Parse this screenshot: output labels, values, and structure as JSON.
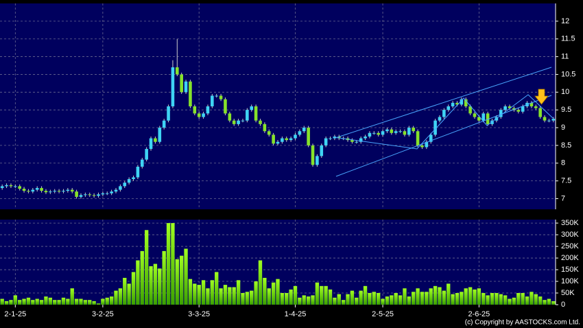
{
  "chart_data": {
    "type": "candlestick",
    "open": [
      7.3,
      7.35,
      7.38,
      7.35,
      7.35,
      7.28,
      7.22,
      7.2,
      7.25,
      7.3,
      7.22,
      7.18,
      7.2,
      7.22,
      7.2,
      7.22,
      7.25,
      7.2,
      7.05,
      7.1,
      7.12,
      7.1,
      7.08,
      7.12,
      7.15,
      7.15,
      7.2,
      7.25,
      7.35,
      7.45,
      7.55,
      7.6,
      7.9,
      8.1,
      8.4,
      8.7,
      8.6,
      9.0,
      9.2,
      9.6,
      10.7,
      10.5,
      10.0,
      10.3,
      9.6,
      9.4,
      9.3,
      9.4,
      9.6,
      9.9,
      9.9,
      9.8,
      9.4,
      9.2,
      9.1,
      9.2,
      9.2,
      9.5,
      9.6,
      9.2,
      9.1,
      8.9,
      8.8,
      8.55,
      8.6,
      8.7,
      8.65,
      8.7,
      8.8,
      8.9,
      9.0,
      8.5,
      7.95,
      8.2,
      8.5,
      8.7,
      8.7,
      8.75,
      8.7,
      8.7,
      8.65,
      8.6,
      8.6,
      8.7,
      8.75,
      8.85,
      8.85,
      8.8,
      8.9,
      8.95,
      8.85,
      8.9,
      8.9,
      8.8,
      9.0,
      8.9,
      8.5,
      8.45,
      8.6,
      8.8,
      9.2,
      9.3,
      9.5,
      9.6,
      9.7,
      9.65,
      9.8,
      9.6,
      9.4,
      9.3,
      9.2,
      9.4,
      9.1,
      9.2,
      9.3,
      9.5,
      9.6,
      9.55,
      9.5,
      9.45,
      9.6,
      9.7,
      9.6,
      9.55,
      9.3,
      9.2,
      9.2
    ],
    "high": [
      7.4,
      7.43,
      7.43,
      7.4,
      7.4,
      7.33,
      7.27,
      7.3,
      7.35,
      7.35,
      7.27,
      7.25,
      7.27,
      7.27,
      7.27,
      7.3,
      7.3,
      7.25,
      7.15,
      7.17,
      7.17,
      7.15,
      7.17,
      7.2,
      7.2,
      7.25,
      7.3,
      7.4,
      7.5,
      7.6,
      7.65,
      7.95,
      8.15,
      8.45,
      8.75,
      8.75,
      9.05,
      9.25,
      9.65,
      10.9,
      11.5,
      10.55,
      10.35,
      10.35,
      9.65,
      9.45,
      9.45,
      9.65,
      9.95,
      9.95,
      9.95,
      9.85,
      9.45,
      9.25,
      9.25,
      9.25,
      9.55,
      9.65,
      9.65,
      9.25,
      9.15,
      8.95,
      8.85,
      8.65,
      8.75,
      8.75,
      8.75,
      8.85,
      8.95,
      9.05,
      9.05,
      8.55,
      8.25,
      8.55,
      8.75,
      8.75,
      8.8,
      8.8,
      8.75,
      8.75,
      8.7,
      8.65,
      8.75,
      8.8,
      8.9,
      8.9,
      8.9,
      8.95,
      9.0,
      9.0,
      8.95,
      8.95,
      8.95,
      9.05,
      9.05,
      8.95,
      8.55,
      8.65,
      8.85,
      9.25,
      9.35,
      9.55,
      9.65,
      9.75,
      9.75,
      9.85,
      9.85,
      9.65,
      9.45,
      9.35,
      9.45,
      9.45,
      9.25,
      9.35,
      9.55,
      9.65,
      9.65,
      9.6,
      9.55,
      9.65,
      9.75,
      9.75,
      9.65,
      9.6,
      9.35,
      9.25,
      9.3
    ],
    "low": [
      7.25,
      7.3,
      7.3,
      7.3,
      7.23,
      7.17,
      7.15,
      7.15,
      7.2,
      7.17,
      7.13,
      7.13,
      7.15,
      7.15,
      7.15,
      7.17,
      7.15,
      7.0,
      7.0,
      7.05,
      7.05,
      7.03,
      7.03,
      7.07,
      7.1,
      7.1,
      7.15,
      7.2,
      7.3,
      7.4,
      7.5,
      7.55,
      7.85,
      8.05,
      8.35,
      8.55,
      8.55,
      8.95,
      9.15,
      9.55,
      10.45,
      9.95,
      9.95,
      9.55,
      9.35,
      9.25,
      9.25,
      9.35,
      9.55,
      9.85,
      9.75,
      9.35,
      9.15,
      9.05,
      9.05,
      9.15,
      9.15,
      9.45,
      9.15,
      9.05,
      8.85,
      8.75,
      8.5,
      8.5,
      8.55,
      8.6,
      8.6,
      8.65,
      8.75,
      8.85,
      8.45,
      7.9,
      7.9,
      8.15,
      8.45,
      8.65,
      8.65,
      8.65,
      8.65,
      8.6,
      8.55,
      8.55,
      8.55,
      8.65,
      8.7,
      8.8,
      8.75,
      8.75,
      8.85,
      8.8,
      8.8,
      8.85,
      8.75,
      8.75,
      8.85,
      8.45,
      8.4,
      8.4,
      8.55,
      8.75,
      9.15,
      9.25,
      9.45,
      9.55,
      9.6,
      9.6,
      9.55,
      9.35,
      9.25,
      9.15,
      9.15,
      9.05,
      9.05,
      9.15,
      9.25,
      9.45,
      9.5,
      9.45,
      9.4,
      9.4,
      9.55,
      9.55,
      9.5,
      9.25,
      9.15,
      9.15,
      9.15
    ],
    "close": [
      7.35,
      7.38,
      7.35,
      7.35,
      7.28,
      7.22,
      7.2,
      7.25,
      7.3,
      7.22,
      7.18,
      7.2,
      7.22,
      7.2,
      7.22,
      7.25,
      7.2,
      7.05,
      7.1,
      7.12,
      7.1,
      7.08,
      7.12,
      7.15,
      7.15,
      7.2,
      7.25,
      7.35,
      7.45,
      7.55,
      7.6,
      7.9,
      8.1,
      8.4,
      8.7,
      8.6,
      9.0,
      9.2,
      9.6,
      10.7,
      10.5,
      10.0,
      10.3,
      9.6,
      9.4,
      9.3,
      9.4,
      9.6,
      9.9,
      9.9,
      9.8,
      9.4,
      9.2,
      9.1,
      9.2,
      9.2,
      9.5,
      9.6,
      9.2,
      9.1,
      8.9,
      8.8,
      8.55,
      8.6,
      8.7,
      8.65,
      8.7,
      8.8,
      8.9,
      9.0,
      8.5,
      7.95,
      8.2,
      8.5,
      8.7,
      8.7,
      8.75,
      8.7,
      8.7,
      8.65,
      8.6,
      8.6,
      8.7,
      8.75,
      8.85,
      8.85,
      8.8,
      8.9,
      8.95,
      8.85,
      8.9,
      8.9,
      8.8,
      9.0,
      8.9,
      8.5,
      8.45,
      8.6,
      8.8,
      9.2,
      9.3,
      9.5,
      9.6,
      9.7,
      9.65,
      9.8,
      9.6,
      9.4,
      9.3,
      9.2,
      9.4,
      9.1,
      9.2,
      9.3,
      9.5,
      9.6,
      9.55,
      9.5,
      9.45,
      9.6,
      9.7,
      9.6,
      9.55,
      9.3,
      9.2,
      9.2,
      9.25
    ],
    "volume": [
      25000,
      15000,
      20000,
      40000,
      20000,
      25000,
      30000,
      20000,
      25000,
      20000,
      35000,
      30000,
      20000,
      20000,
      30000,
      25000,
      70000,
      25000,
      25000,
      20000,
      20000,
      15000,
      5000,
      25000,
      30000,
      35000,
      60000,
      70000,
      115000,
      90000,
      140000,
      190000,
      230000,
      320000,
      165000,
      175000,
      155000,
      230000,
      350000,
      350000,
      195000,
      210000,
      240000,
      110000,
      90000,
      85000,
      105000,
      70000,
      105000,
      140000,
      70000,
      85000,
      75000,
      75000,
      105000,
      50000,
      55000,
      60000,
      100000,
      190000,
      115000,
      70000,
      95000,
      110000,
      50000,
      50000,
      65000,
      80000,
      30000,
      40000,
      35000,
      40000,
      95000,
      80000,
      80000,
      65000,
      30000,
      45000,
      20000,
      45000,
      60000,
      30000,
      60000,
      80000,
      50000,
      55000,
      50000,
      25000,
      35000,
      40000,
      50000,
      40000,
      70000,
      35000,
      55000,
      70000,
      55000,
      55000,
      70000,
      80000,
      75000,
      60000,
      90000,
      45000,
      50000,
      55000,
      70000,
      75000,
      65000,
      70000,
      50000,
      40000,
      50000,
      50000,
      45000,
      40000,
      25000,
      30000,
      50000,
      50000,
      35000,
      55000,
      45000,
      35000,
      20000,
      25000,
      15000
    ],
    "up_color": "#3fd4f4",
    "down_color": "#86e22a",
    "volume_color": "#7cf000",
    "xlim": [
      -0.5,
      126.5
    ],
    "xticks": [
      {
        "value": 3,
        "label": "2-1-25"
      },
      {
        "value": 23,
        "label": "3-2-25"
      },
      {
        "value": 45,
        "label": "3-3-25"
      },
      {
        "value": 67,
        "label": "1-4-25"
      },
      {
        "value": 87,
        "label": "2-5-25"
      },
      {
        "value": 109,
        "label": "2-6-25"
      }
    ],
    "ylim": [
      6.7,
      12.5
    ],
    "yticks": [
      7,
      7.5,
      8,
      8.5,
      9,
      9.5,
      10,
      10.5,
      11,
      11.5,
      12
    ],
    "y2lim": [
      0,
      365000
    ],
    "y2ticks": [
      0,
      {
        "value": 50000,
        "label": "50K"
      },
      {
        "value": 100000,
        "label": "100K"
      },
      {
        "value": 150000,
        "label": "150K"
      },
      {
        "value": 200000,
        "label": "200K"
      },
      {
        "value": 250000,
        "label": "250K"
      },
      {
        "value": 300000,
        "label": "300K"
      },
      {
        "value": 350000,
        "label": "350K"
      }
    ],
    "grid": true,
    "copyright": "(c) Copyright by AASTOCKS.com Ltd."
  }
}
